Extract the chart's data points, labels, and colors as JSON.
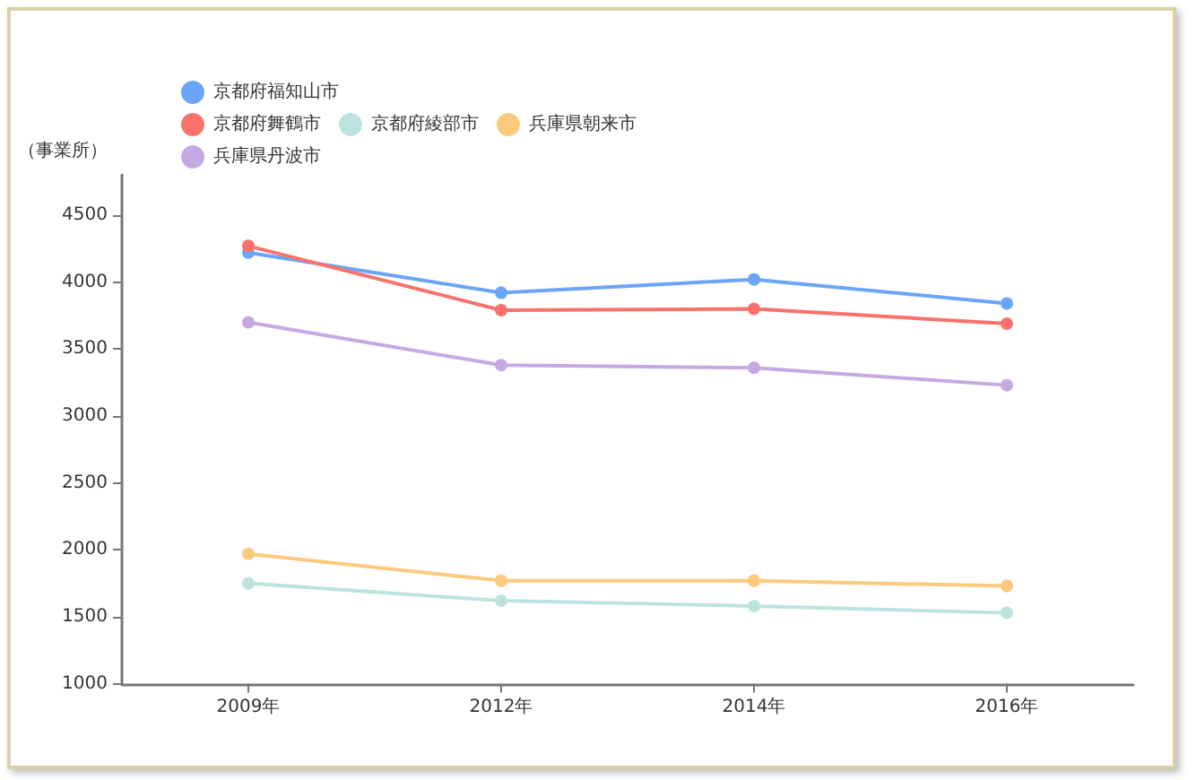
{
  "chart_data": {
    "type": "line",
    "ylabel": "（事業所）",
    "categories": [
      "2009年",
      "2012年",
      "2014年",
      "2016年"
    ],
    "series": [
      {
        "name": "京都府福知山市",
        "color": "#6ba5f7",
        "values": [
          4220,
          3920,
          4020,
          3840
        ]
      },
      {
        "name": "京都府舞鶴市",
        "color": "#f8726b",
        "values": [
          4270,
          3790,
          3800,
          3690
        ]
      },
      {
        "name": "京都府綾部市",
        "color": "#bde3df",
        "values": [
          1750,
          1620,
          1580,
          1530
        ]
      },
      {
        "name": "兵庫県朝来市",
        "color": "#fdc97c",
        "values": [
          1970,
          1770,
          1770,
          1730
        ]
      },
      {
        "name": "兵庫県丹波市",
        "color": "#c6a9e3",
        "values": [
          3700,
          3380,
          3360,
          3230
        ]
      }
    ],
    "ylim": [
      1000,
      4800
    ],
    "yticks": [
      1000,
      1500,
      2000,
      2500,
      3000,
      3500,
      4000,
      4500
    ],
    "grid": false,
    "legend": "top left",
    "marker": "circle",
    "line_style": "solid"
  }
}
